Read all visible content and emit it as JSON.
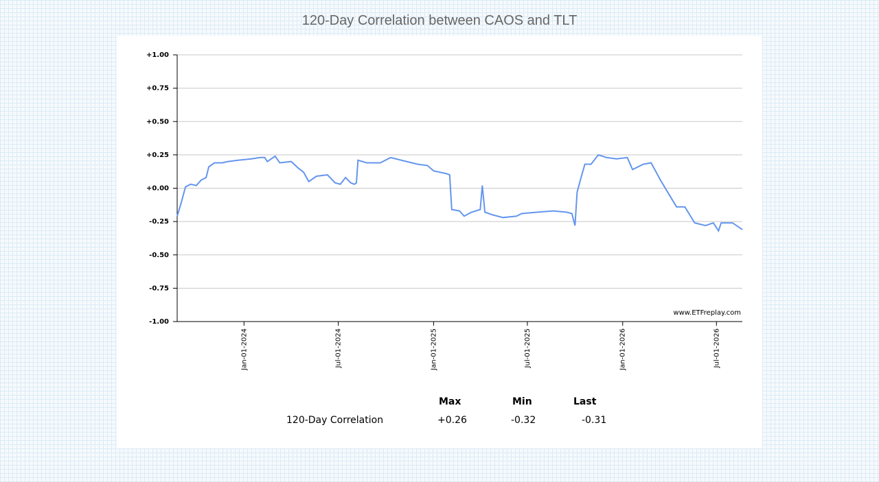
{
  "chart_data": {
    "type": "line",
    "title": "120-Day Correlation between CAOS and TLT",
    "annotation": "www.ETFreplay.com",
    "color": "#6495ed",
    "grid": true,
    "x": [
      "2023-08-25",
      "2023-09-01",
      "2023-09-10",
      "2023-09-20",
      "2023-10-01",
      "2023-10-10",
      "2023-10-20",
      "2023-10-25",
      "2023-11-05",
      "2023-11-20",
      "2023-12-01",
      "2023-12-20",
      "2024-01-15",
      "2024-02-01",
      "2024-02-10",
      "2024-02-15",
      "2024-03-01",
      "2024-03-10",
      "2024-04-01",
      "2024-04-15",
      "2024-04-25",
      "2024-05-05",
      "2024-05-20",
      "2024-06-10",
      "2024-06-25",
      "2024-07-05",
      "2024-07-15",
      "2024-07-25",
      "2024-08-01",
      "2024-08-05",
      "2024-08-08",
      "2024-08-25",
      "2024-09-20",
      "2024-10-10",
      "2024-11-10",
      "2024-12-01",
      "2024-12-20",
      "2025-01-01",
      "2025-01-25",
      "2025-02-01",
      "2025-02-05",
      "2025-02-20",
      "2025-03-01",
      "2025-03-15",
      "2025-04-01",
      "2025-04-05",
      "2025-04-10",
      "2025-04-25",
      "2025-05-15",
      "2025-06-10",
      "2025-06-20",
      "2025-07-20",
      "2025-08-20",
      "2025-09-15",
      "2025-09-25",
      "2025-10-01",
      "2025-10-05",
      "2025-10-12",
      "2025-10-20",
      "2025-11-01",
      "2025-11-15",
      "2025-12-01",
      "2025-12-20",
      "2026-01-10",
      "2026-01-20",
      "2026-02-10",
      "2026-02-25",
      "2026-03-15",
      "2026-04-01",
      "2026-04-15",
      "2026-05-01",
      "2026-05-20",
      "2026-06-10",
      "2026-06-25",
      "2026-07-05",
      "2026-07-10",
      "2026-08-01",
      "2026-08-20"
    ],
    "values": [
      -0.21,
      -0.12,
      0.01,
      0.03,
      0.02,
      0.06,
      0.08,
      0.16,
      0.19,
      0.19,
      0.2,
      0.21,
      0.22,
      0.23,
      0.23,
      0.2,
      0.24,
      0.19,
      0.2,
      0.15,
      0.12,
      0.05,
      0.09,
      0.1,
      0.04,
      0.03,
      0.08,
      0.04,
      0.03,
      0.04,
      0.21,
      0.19,
      0.19,
      0.23,
      0.2,
      0.18,
      0.17,
      0.13,
      0.11,
      0.1,
      -0.16,
      -0.17,
      -0.21,
      -0.18,
      -0.16,
      0.02,
      -0.18,
      -0.2,
      -0.22,
      -0.21,
      -0.19,
      -0.18,
      -0.17,
      -0.18,
      -0.19,
      -0.28,
      -0.03,
      0.07,
      0.18,
      0.18,
      0.25,
      0.23,
      0.22,
      0.23,
      0.14,
      0.18,
      0.19,
      0.06,
      -0.05,
      -0.14,
      -0.14,
      -0.26,
      -0.28,
      -0.26,
      -0.32,
      -0.26,
      -0.26,
      -0.31
    ],
    "xlim": [
      "2023-08-25",
      "2026-08-20"
    ],
    "xticks": [
      {
        "value": "2024-01-01",
        "label": "Jan-01-2024"
      },
      {
        "value": "2024-07-01",
        "label": "Jul-01-2024"
      },
      {
        "value": "2025-01-01",
        "label": "Jan-01-2025"
      },
      {
        "value": "2025-07-01",
        "label": "Jul-01-2025"
      },
      {
        "value": "2026-01-01",
        "label": "Jan-01-2026"
      },
      {
        "value": "2026-07-01",
        "label": "Jul-01-2026"
      }
    ],
    "ylim": [
      -1,
      1
    ],
    "yticks": [
      {
        "value": -1,
        "label": "-1.00"
      },
      {
        "value": -0.75,
        "label": "-0.75"
      },
      {
        "value": -0.5,
        "label": "-0.50"
      },
      {
        "value": -0.25,
        "label": "-0.25"
      },
      {
        "value": 0,
        "label": "+0.00"
      },
      {
        "value": 0.25,
        "label": "+0.25"
      },
      {
        "value": 0.5,
        "label": "+0.50"
      },
      {
        "value": 0.75,
        "label": "+0.75"
      },
      {
        "value": 1,
        "label": "+1.00"
      }
    ]
  },
  "stats": {
    "headers": [
      "Max",
      "Min",
      "Last"
    ],
    "row": {
      "label": "120-Day Correlation",
      "cells": [
        "+0.26",
        "-0.32",
        "-0.31"
      ]
    }
  }
}
